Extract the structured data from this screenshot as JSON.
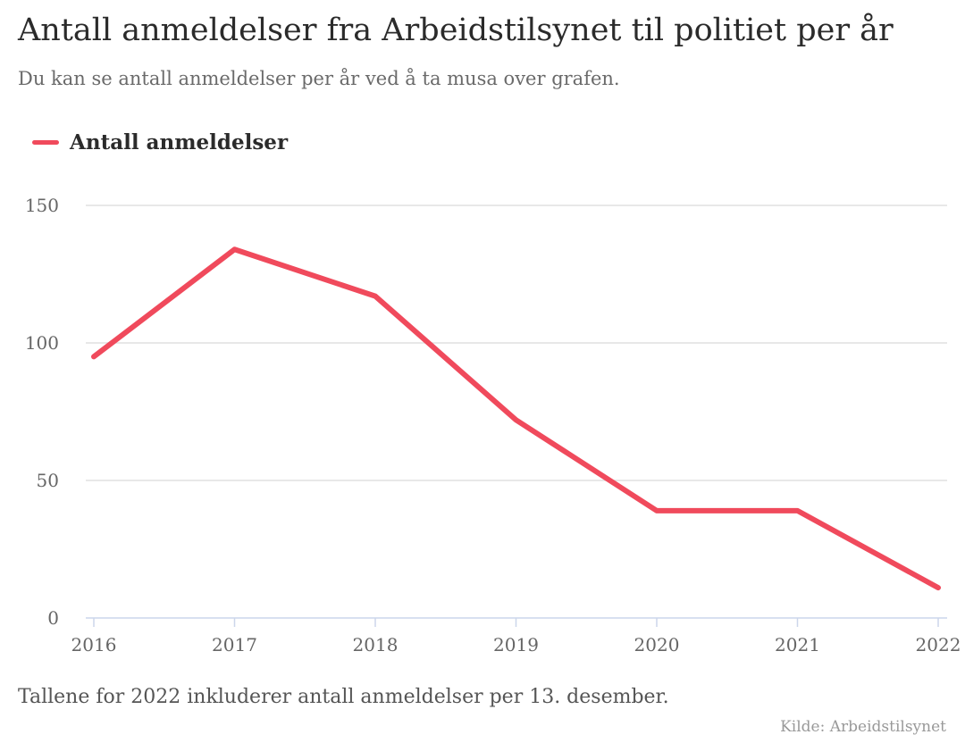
{
  "colors": {
    "series": "#f04a5c",
    "grid": "#e0e0e0",
    "axis": "#ccd6eb"
  },
  "chart_data": {
    "type": "line",
    "title": "Antall anmeldelser fra Arbeidstilsynet til politiet per år",
    "subtitle": "Du kan se antall anmeldelser per år ved å ta musa over grafen.",
    "xlabel": "",
    "ylabel": "",
    "categories": [
      "2016",
      "2017",
      "2018",
      "2019",
      "2020",
      "2021",
      "2022"
    ],
    "series": [
      {
        "name": "Antall anmeldelser",
        "values": [
          95,
          134,
          117,
          72,
          39,
          39,
          11
        ]
      }
    ],
    "ylim": [
      0,
      150
    ],
    "yticks": [
      "0",
      "50",
      "100",
      "150"
    ],
    "grid": true,
    "legend_position": "top-left",
    "note": "Tallene for 2022 inkluderer antall anmeldelser per 13. desember.",
    "credit": "Kilde: Arbeidstilsynet"
  }
}
